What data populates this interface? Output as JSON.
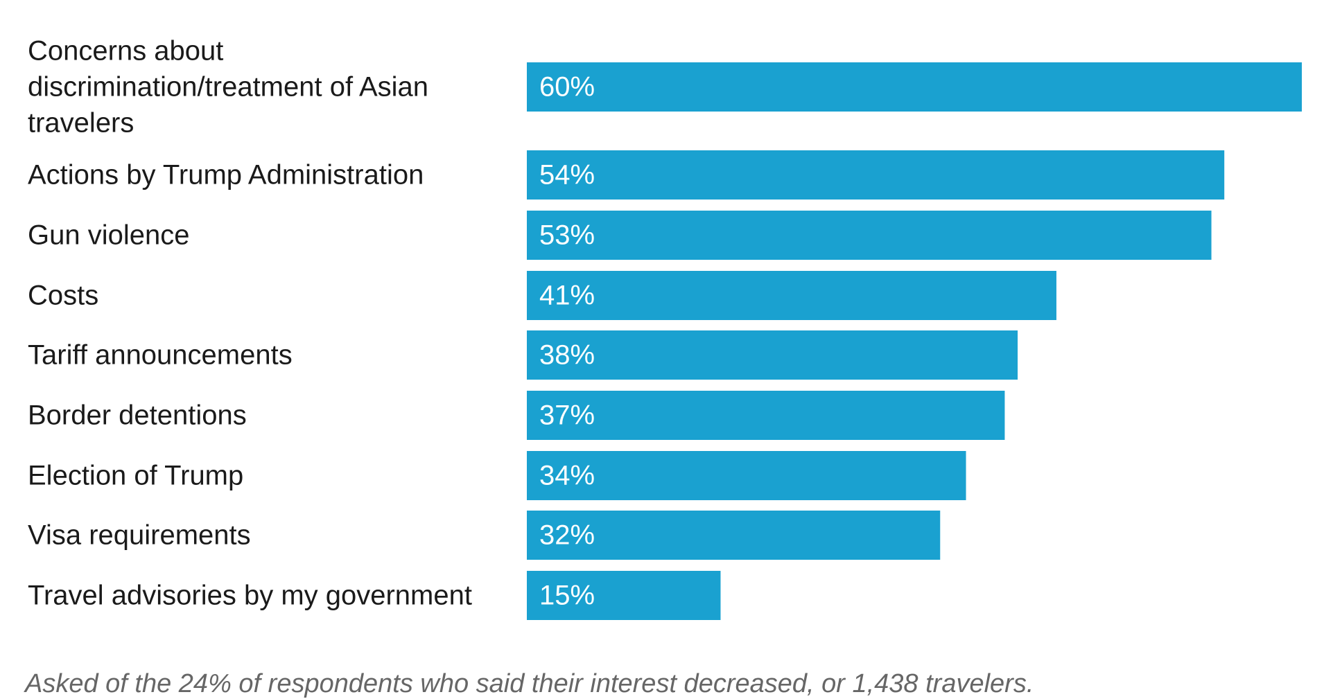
{
  "chart_data": {
    "type": "bar",
    "orientation": "horizontal",
    "categories": [
      "Concerns about discrimination/treatment of Asian travelers",
      "Actions by Trump Administration",
      "Gun violence",
      "Costs",
      "Tariff announcements",
      "Border detentions",
      "Election of Trump",
      "Visa requirements",
      "Travel advisories by my government"
    ],
    "category_lines": [
      [
        "Concerns about",
        "discrimination/treatment of Asian",
        "travelers"
      ],
      [
        "Actions by Trump Administration"
      ],
      [
        "Gun violence"
      ],
      [
        "Costs"
      ],
      [
        "Tariff announcements"
      ],
      [
        "Border detentions"
      ],
      [
        "Election of Trump"
      ],
      [
        "Visa requirements"
      ],
      [
        "Travel advisories by my government"
      ]
    ],
    "values": [
      60,
      54,
      53,
      41,
      38,
      37,
      34,
      32,
      15
    ],
    "value_labels": [
      "60%",
      "54%",
      "53%",
      "41%",
      "38%",
      "37%",
      "34%",
      "32%",
      "15%"
    ],
    "xlim": [
      0,
      60
    ],
    "grid": false,
    "legend": "none",
    "bar_color": "#1aa1d0"
  },
  "note": "Asked of the 24% of respondents who said their interest decreased, or 1,438 travelers."
}
